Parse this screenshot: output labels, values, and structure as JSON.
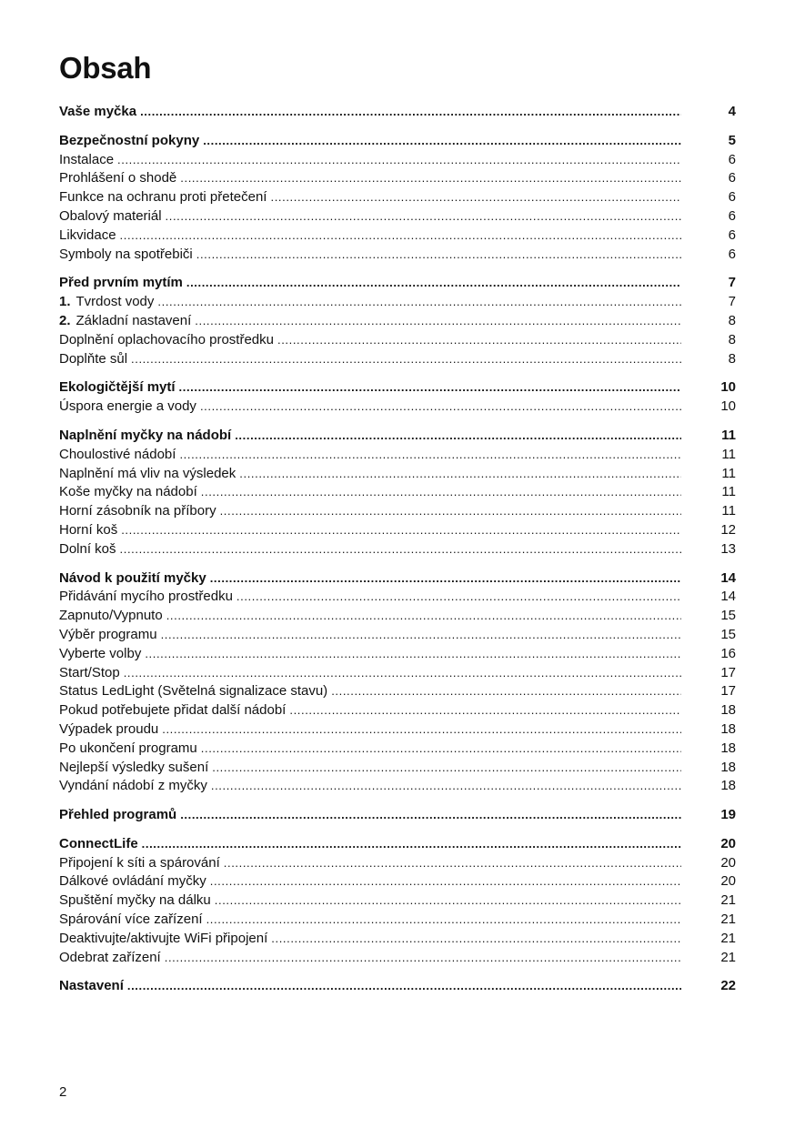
{
  "title": "Obsah",
  "page_number": "2",
  "sections": [
    {
      "title": "Vaše myčka",
      "page": "4",
      "items": []
    },
    {
      "title": "Bezpečnostní pokyny",
      "page": "5",
      "items": [
        {
          "label": "Instalace",
          "page": "6"
        },
        {
          "label": "Prohlášení o shodě",
          "page": "6"
        },
        {
          "label": "Funkce na ochranu proti přetečení",
          "page": "6"
        },
        {
          "label": "Obalový materiál",
          "page": "6"
        },
        {
          "label": "Likvidace",
          "page": "6"
        },
        {
          "label": "Symboly na spotřebiči",
          "page": "6"
        }
      ]
    },
    {
      "title": "Před prvním mytím",
      "page": "7",
      "items": [
        {
          "num": "1.",
          "label": "Tvrdost vody",
          "page": "7"
        },
        {
          "num": "2.",
          "label": "Základní nastavení",
          "page": "8"
        },
        {
          "label": "Doplnění oplachovacího prostředku",
          "page": "8"
        },
        {
          "label": "Doplňte sůl",
          "page": "8"
        }
      ]
    },
    {
      "title": "Ekologičtější mytí",
      "page": "10",
      "items": [
        {
          "label": "Úspora energie a vody",
          "page": "10"
        }
      ]
    },
    {
      "title": "Naplnění myčky na nádobí",
      "page": "11",
      "items": [
        {
          "label": "Choulostivé nádobí",
          "page": "11"
        },
        {
          "label": "Naplnění má vliv na výsledek",
          "page": "11"
        },
        {
          "label": "Koše myčky na nádobí",
          "page": "11"
        },
        {
          "label": "Horní zásobník na příbory",
          "page": "11"
        },
        {
          "label": "Horní koš",
          "page": "12"
        },
        {
          "label": "Dolní koš",
          "page": "13"
        }
      ]
    },
    {
      "title": "Návod k použití myčky",
      "page": "14",
      "items": [
        {
          "label": "Přidávání mycího prostředku",
          "page": "14"
        },
        {
          "label": "Zapnuto/Vypnuto",
          "page": "15"
        },
        {
          "label": "Výběr programu",
          "page": "15"
        },
        {
          "label": "Vyberte volby",
          "page": "16"
        },
        {
          "label": "Start/Stop",
          "page": "17"
        },
        {
          "label": "Status LedLight (Světelná signalizace stavu)",
          "page": "17"
        },
        {
          "label": "Pokud potřebujete přidat další nádobí",
          "page": "18"
        },
        {
          "label": "Výpadek proudu",
          "page": "18"
        },
        {
          "label": "Po ukončení programu",
          "page": "18"
        },
        {
          "label": "Nejlepší výsledky sušení",
          "page": "18"
        },
        {
          "label": "Vyndání nádobí z myčky",
          "page": "18"
        }
      ]
    },
    {
      "title": "Přehled programů",
      "page": "19",
      "items": []
    },
    {
      "title": "ConnectLife",
      "page": "20",
      "items": [
        {
          "label": "Připojení k síti a spárování",
          "page": "20"
        },
        {
          "label": "Dálkové ovládání myčky",
          "page": "20"
        },
        {
          "label": "Spuštění myčky na dálku",
          "page": "21"
        },
        {
          "label": "Spárování více zařízení",
          "page": "21"
        },
        {
          "label": "Deaktivujte/aktivujte WiFi připojení",
          "page": "21"
        },
        {
          "label": "Odebrat zařízení",
          "page": "21"
        }
      ]
    },
    {
      "title": "Nastavení",
      "page": "22",
      "items": []
    }
  ]
}
